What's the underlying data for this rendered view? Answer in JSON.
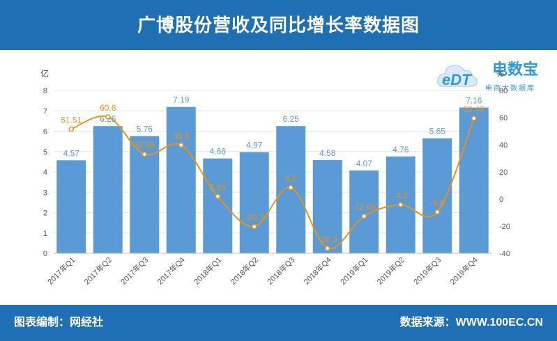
{
  "header": {
    "title": "广博股份营收及同比增长率数据图"
  },
  "footer": {
    "left": "图表编制：网经社",
    "right": "数据来源：WWW.100EC.CN"
  },
  "logo": {
    "main": "电数宝",
    "sub": "电商大数据库",
    "mark": "eDT"
  },
  "colors": {
    "bar": "#5b9bd5",
    "line": "#e8931a",
    "header": "#1f6fb5",
    "bar_label": "#5b9bd5",
    "line_label": "#e8931a"
  },
  "chart_data": {
    "type": "bar",
    "categories": [
      "2017年Q1",
      "2017年Q2",
      "2017年Q3",
      "2017年Q4",
      "2018年Q1",
      "2018年Q2",
      "2018年Q3",
      "2018年Q4",
      "2019年Q1",
      "2019年Q2",
      "2019年Q3",
      "2019年Q4"
    ],
    "series": [
      {
        "values": [
          4.57,
          6.25,
          5.76,
          7.19,
          4.66,
          4.97,
          6.25,
          4.58,
          4.07,
          4.76,
          5.65,
          7.16
        ],
        "axis": "left",
        "kind": "bar"
      },
      {
        "values": [
          51.51,
          60.6,
          32.98,
          39.8,
          1.95,
          -20.3,
          8.5,
          -36.3,
          -12.66,
          -4.2,
          -9.6,
          59.46
        ],
        "labels": [
          "51.51",
          "60.6",
          "32.98",
          "39.8",
          "1.95",
          "-20.3",
          "8.5",
          "-36.3",
          "-12.66",
          "-4.2",
          "-9.6",
          "59.46"
        ],
        "axis": "right",
        "kind": "line",
        "smooth": true
      }
    ],
    "ylabel": "亿",
    "y2label": "%",
    "ylim": [
      0,
      8
    ],
    "y2lim": [
      -40,
      80
    ],
    "yticks": [
      "0",
      "1",
      "2",
      "3",
      "4",
      "5",
      "6",
      "7",
      "8"
    ],
    "y2ticks": [
      "-40",
      "-20",
      "0",
      "20",
      "40",
      "60",
      "80"
    ],
    "grid": true,
    "legend": "none"
  }
}
